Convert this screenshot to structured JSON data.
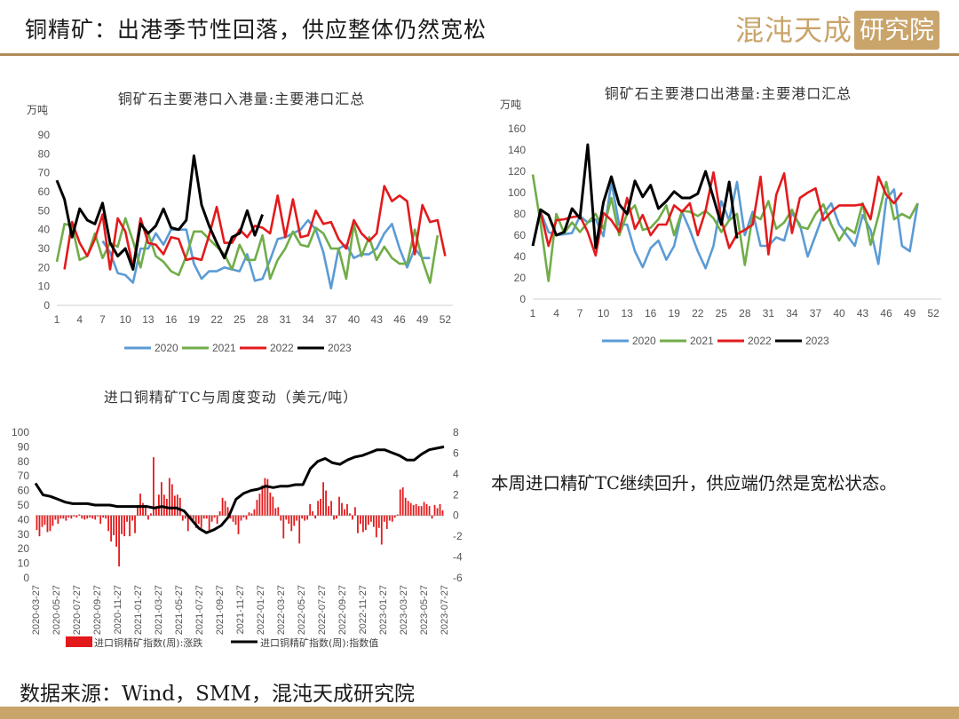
{
  "header": {
    "title": "铜精矿：出港季节性回落，供应整体仍然宽松",
    "logo_text": "混沌天成",
    "logo_box": "研究院"
  },
  "note": "本周进口精矿TC继续回升，供应端仍然是宽松状态。",
  "footer": {
    "source": "数据来源：Wind，SMM，混沌天成研究院"
  },
  "colors": {
    "2020": "#5b9bd5",
    "2021": "#70ad47",
    "2022": "#e31a1c",
    "2023": "#000000",
    "change_bar": "#e31a1c",
    "accent": "#c9a46b"
  },
  "chart_data": [
    {
      "id": "inbound",
      "type": "line",
      "title": "铜矿石主要港口入港量:主要港口汇总",
      "unit": "万吨",
      "ylim": [
        0,
        90
      ],
      "yticks": [
        0,
        10,
        20,
        30,
        40,
        50,
        60,
        70,
        80,
        90
      ],
      "xticks": [
        "1",
        "4",
        "7",
        "10",
        "13",
        "16",
        "19",
        "22",
        "25",
        "28",
        "31",
        "34",
        "37",
        "40",
        "43",
        "46",
        "49",
        "52"
      ],
      "x_start": 1,
      "x_end": 53,
      "legend": "bottom",
      "series": [
        {
          "name": "2020",
          "start": 7,
          "values": [
            34,
            28,
            17,
            16,
            12,
            30,
            30,
            38,
            32,
            40,
            40,
            40,
            22,
            14,
            18,
            18,
            20,
            19,
            18,
            27,
            13,
            14,
            24,
            35,
            36,
            38,
            40,
            45,
            40,
            28,
            9,
            30,
            32,
            25,
            27,
            27,
            30,
            38,
            43,
            30,
            20,
            30,
            25,
            25
          ]
        },
        {
          "name": "2021",
          "start": 1,
          "values": [
            23,
            43,
            42,
            24,
            26,
            38,
            25,
            33,
            31,
            46,
            34,
            20,
            38,
            26,
            23,
            18,
            16,
            26,
            39,
            39,
            35,
            31,
            27,
            19,
            32,
            24,
            24,
            37,
            14,
            24,
            30,
            39,
            32,
            31,
            41,
            38,
            30,
            30,
            14,
            43,
            26,
            36,
            24,
            31,
            25,
            22,
            22,
            40,
            24,
            12,
            37
          ]
        },
        {
          "name": "2022",
          "start": 2,
          "values": [
            19,
            44,
            33,
            26,
            35,
            48,
            19,
            46,
            39,
            20,
            46,
            33,
            32,
            27,
            36,
            35,
            24,
            25,
            24,
            37,
            52,
            33,
            33,
            40,
            36,
            42,
            41,
            38,
            58,
            36,
            56,
            36,
            37,
            50,
            43,
            44,
            35,
            30,
            45,
            38,
            34,
            38,
            63,
            55,
            58,
            55,
            27,
            53,
            44,
            45,
            26
          ]
        },
        {
          "name": "2023",
          "start": 1,
          "values": [
            66,
            56,
            36,
            51,
            45,
            43,
            54,
            33,
            26,
            30,
            19,
            43,
            38,
            42,
            51,
            41,
            40,
            45,
            79,
            53,
            42,
            33,
            25,
            36,
            38,
            50,
            37,
            48
          ]
        }
      ]
    },
    {
      "id": "outbound",
      "type": "line",
      "title": "铜矿石主要港口出港量:主要港口汇总",
      "unit": "万吨",
      "ylim": [
        0,
        160
      ],
      "yticks": [
        0,
        20,
        40,
        60,
        80,
        100,
        120,
        140,
        160
      ],
      "xticks": [
        "1",
        "4",
        "7",
        "10",
        "13",
        "16",
        "19",
        "22",
        "25",
        "28",
        "31",
        "34",
        "37",
        "40",
        "43",
        "46",
        "49",
        "52"
      ],
      "x_start": 1,
      "x_end": 53,
      "legend": "bottom",
      "series": [
        {
          "name": "2020",
          "start": 1,
          "values": [
            50,
            82,
            63,
            60,
            61,
            62,
            78,
            72,
            75,
            59,
            110,
            70,
            70,
            45,
            30,
            48,
            55,
            37,
            50,
            82,
            65,
            45,
            29,
            50,
            92,
            74,
            110,
            60,
            82,
            50,
            50,
            58,
            55,
            81,
            70,
            40,
            60,
            80,
            90,
            70,
            60,
            50,
            79,
            65,
            33,
            94,
            103,
            50,
            45,
            90
          ]
        },
        {
          "name": "2021",
          "start": 1,
          "values": [
            117,
            71,
            17,
            80,
            62,
            72,
            63,
            72,
            80,
            66,
            95,
            60,
            80,
            88,
            65,
            67,
            75,
            88,
            60,
            83,
            82,
            78,
            83,
            76,
            63,
            74,
            80,
            32,
            79,
            75,
            92,
            66,
            72,
            84,
            68,
            66,
            80,
            89,
            70,
            55,
            67,
            62,
            90,
            51,
            78,
            110,
            75,
            80,
            76,
            90
          ]
        },
        {
          "name": "2022",
          "start": 2,
          "values": [
            82,
            50,
            74,
            75,
            77,
            78,
            63,
            41,
            81,
            74,
            63,
            95,
            66,
            79,
            60,
            70,
            70,
            88,
            82,
            90,
            60,
            83,
            119,
            75,
            48,
            61,
            65,
            70,
            115,
            42,
            98,
            118,
            62,
            95,
            100,
            104,
            74,
            82,
            88,
            88,
            88,
            89,
            75,
            115,
            98,
            90,
            100
          ]
        },
        {
          "name": "2023",
          "start": 1,
          "values": [
            50,
            84,
            79,
            60,
            63,
            85,
            76,
            145,
            48,
            91,
            115,
            89,
            80,
            111,
            96,
            107,
            85,
            92,
            101,
            95,
            95,
            99,
            120,
            95,
            70,
            110,
            57
          ]
        }
      ]
    },
    {
      "id": "tc",
      "type": "bar_line",
      "title": "进口铜精矿TC与周度变动（美元/吨）",
      "left_axis": {
        "ylim": [
          0,
          100
        ],
        "ticks": [
          0,
          10,
          20,
          30,
          40,
          50,
          60,
          70,
          80,
          90,
          100
        ]
      },
      "right_axis": {
        "ylim": [
          -6,
          8
        ],
        "ticks": [
          -6,
          -4,
          -2,
          0,
          2,
          4,
          6,
          8
        ]
      },
      "dates": [
        "2020-03-27",
        "2020-05-27",
        "2020-07-27",
        "2020-09-27",
        "2020-11-27",
        "2021-01-27",
        "2021-03-27",
        "2021-05-27",
        "2021-07-27",
        "2021-09-27",
        "2021-11-27",
        "2022-01-27",
        "2022-03-27",
        "2022-05-27",
        "2022-07-27",
        "2022-09-27",
        "2022-11-27",
        "2023-01-27",
        "2023-03-27",
        "2023-05-27",
        "2023-07-27"
      ],
      "legend": [
        "进口铜精矿指数(周):涨跌",
        "进口铜精矿指数(周):指数值"
      ],
      "index_values": [
        65,
        57,
        56,
        54,
        52,
        51,
        51,
        51,
        50,
        50,
        50,
        49,
        49,
        49,
        49,
        49,
        48,
        49,
        48,
        48,
        46,
        40,
        34,
        31,
        33,
        36,
        42,
        54,
        58,
        60,
        61,
        63,
        62,
        63,
        63,
        64,
        64,
        75,
        80,
        82,
        79,
        78,
        81,
        83,
        84,
        86,
        88,
        88,
        86,
        84,
        81,
        81,
        85,
        88,
        89,
        90
      ],
      "change_values": [
        -1.4,
        -2,
        -1.1,
        -0.9,
        -1.6,
        -1.5,
        -1,
        -0.4,
        -0.8,
        -0.3,
        -0.3,
        -0.5,
        -0.2,
        -0.3,
        -0.1,
        -0.2,
        0.1,
        -0.3,
        -0.4,
        -0.3,
        -0.2,
        -0.3,
        -0.4,
        -0.1,
        -0.8,
        -0.2,
        -0.3,
        -1.5,
        -2.5,
        -1.9,
        -3,
        -4.9,
        -1.8,
        -2,
        -0.6,
        -2,
        -0.5,
        -1.7,
        1,
        2.1,
        1.2,
        1,
        -0.4,
        0.2,
        5.6,
        0.9,
        2,
        3.2,
        2,
        1.6,
        3.6,
        3,
        1.9,
        2,
        1.7,
        -0.5,
        -0.3,
        -1.5,
        -0.2,
        -0.4,
        -1.2,
        -0.8,
        -1.2,
        -0.3,
        -0.3,
        -1.4,
        -0.6,
        -0.2,
        -0.8,
        0.4,
        1.7,
        1.4,
        0.8,
        -0.3,
        -0.6,
        -0.9,
        -1.8,
        -0.5,
        -0.2,
        -0.4,
        0.3,
        0.2,
        0.6,
        1.5,
        2.1,
        2.9,
        3.6,
        3.5,
        2.2,
        1.8,
        0.7,
        0.8,
        -0.5,
        -2.2,
        -0.4,
        -0.8,
        -1.5,
        -1,
        -0.5,
        -2.7,
        -0.3,
        -0.5,
        -0.4,
        1.1,
        0.4,
        -0.3,
        1.4,
        1.6,
        3.2,
        2.4,
        0.9,
        1.4,
        -0.4,
        -0.3,
        1.8,
        1.2,
        0.6,
        1.1,
        0.2,
        -0.4,
        0.8,
        -1.7,
        -0.8,
        -1.6,
        -1.4,
        -0.9,
        -0.6,
        -1.1,
        -2.1,
        -1.2,
        -2.8,
        -0.6,
        -1.3,
        -0.5,
        -0.6,
        -0.2,
        0.1,
        2.5,
        2.7,
        1.7,
        1.4,
        1.2,
        1,
        1.1,
        0.9,
        0.9,
        1.3,
        1.1,
        0.9,
        -0.3,
        1,
        0.7,
        1.1,
        0.5
      ]
    }
  ]
}
